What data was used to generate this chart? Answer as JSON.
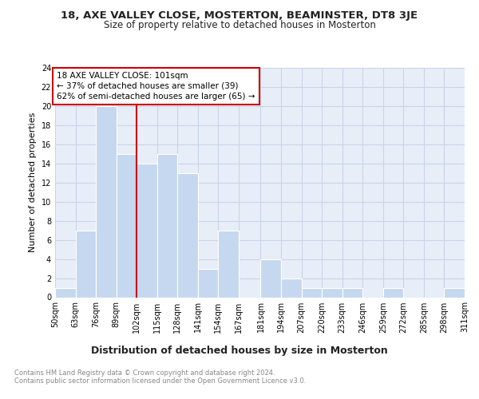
{
  "title1": "18, AXE VALLEY CLOSE, MOSTERTON, BEAMINSTER, DT8 3JE",
  "title2": "Size of property relative to detached houses in Mosterton",
  "xlabel": "Distribution of detached houses by size in Mosterton",
  "ylabel": "Number of detached properties",
  "bin_edges": [
    50,
    63,
    76,
    89,
    102,
    115,
    128,
    141,
    154,
    167,
    181,
    194,
    207,
    220,
    233,
    246,
    259,
    272,
    285,
    298,
    311
  ],
  "counts": [
    1,
    7,
    20,
    15,
    14,
    15,
    13,
    3,
    7,
    0,
    4,
    2,
    1,
    1,
    1,
    0,
    1,
    0,
    0,
    1
  ],
  "bar_color": "#c5d8f0",
  "bar_edge_color": "#ffffff",
  "property_line_x": 102,
  "annotation_line1": "18 AXE VALLEY CLOSE: 101sqm",
  "annotation_line2": "← 37% of detached houses are smaller (39)",
  "annotation_line3": "62% of semi-detached houses are larger (65) →",
  "annotation_box_color": "#ffffff",
  "annotation_box_edge_color": "#cc0000",
  "vline_color": "#cc0000",
  "ylim": [
    0,
    24
  ],
  "yticks": [
    0,
    2,
    4,
    6,
    8,
    10,
    12,
    14,
    16,
    18,
    20,
    22,
    24
  ],
  "grid_color": "#c8d4e8",
  "background_color": "#e8eef8",
  "footer_text": "Contains HM Land Registry data © Crown copyright and database right 2024.\nContains public sector information licensed under the Open Government Licence v3.0.",
  "title1_fontsize": 9.5,
  "title2_fontsize": 8.5,
  "xlabel_fontsize": 9,
  "ylabel_fontsize": 8,
  "tick_fontsize": 7,
  "annotation_fontsize": 7.5,
  "footer_fontsize": 6
}
